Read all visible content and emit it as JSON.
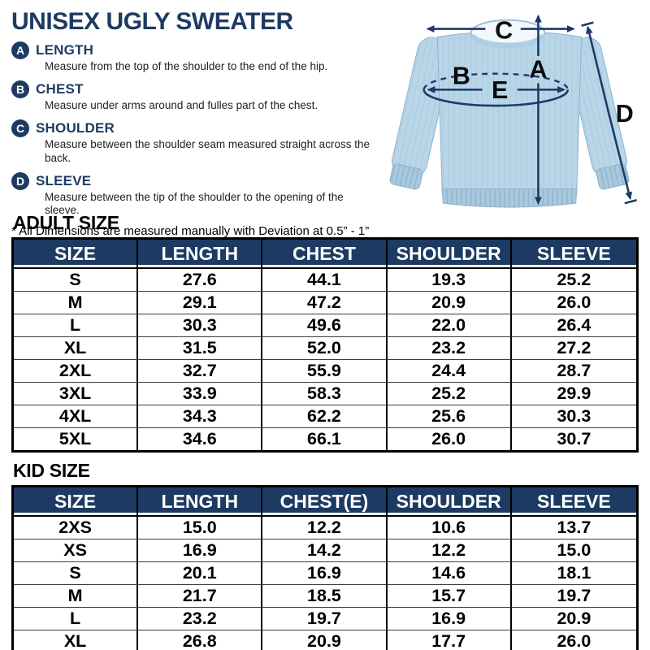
{
  "page": {
    "title": "UNISEX UGLY SWEATER",
    "note": "* All Dimensions are measured manually with Deviation at 0.5” - 1”"
  },
  "legend": {
    "items": [
      {
        "letter": "A",
        "label": "LENGTH",
        "description": "Measure from the top of the shoulder to the end of the hip."
      },
      {
        "letter": "B",
        "label": "CHEST",
        "description": "Measure under arms around and fulles part of the chest."
      },
      {
        "letter": "C",
        "label": "SHOULDER",
        "description": "Measure between the shoulder seam measured straight across the back."
      },
      {
        "letter": "D",
        "label": "SLEEVE",
        "description": "Measure between the tip of the shoulder to the opening of the sleeve."
      }
    ]
  },
  "diagram": {
    "labels": [
      "A",
      "B",
      "C",
      "D",
      "E"
    ]
  },
  "adult_table": {
    "heading": "ADULT SIZE",
    "columns": [
      "SIZE",
      "LENGTH",
      "CHEST",
      "SHOULDER",
      "SLEEVE"
    ],
    "rows": [
      [
        "S",
        "27.6",
        "44.1",
        "19.3",
        "25.2"
      ],
      [
        "M",
        "29.1",
        "47.2",
        "20.9",
        "26.0"
      ],
      [
        "L",
        "30.3",
        "49.6",
        "22.0",
        "26.4"
      ],
      [
        "XL",
        "31.5",
        "52.0",
        "23.2",
        "27.2"
      ],
      [
        "2XL",
        "32.7",
        "55.9",
        "24.4",
        "28.7"
      ],
      [
        "3XL",
        "33.9",
        "58.3",
        "25.2",
        "29.9"
      ],
      [
        "4XL",
        "34.3",
        "62.2",
        "25.6",
        "30.3"
      ],
      [
        "5XL",
        "34.6",
        "66.1",
        "26.0",
        "30.7"
      ]
    ]
  },
  "kid_table": {
    "heading": "KID SIZE",
    "columns": [
      "SIZE",
      "LENGTH",
      "CHEST(E)",
      "SHOULDER",
      "SLEEVE"
    ],
    "rows": [
      [
        "2XS",
        "15.0",
        "12.2",
        "10.6",
        "13.7"
      ],
      [
        "XS",
        "16.9",
        "14.2",
        "12.2",
        "15.0"
      ],
      [
        "S",
        "20.1",
        "16.9",
        "14.6",
        "18.1"
      ],
      [
        "M",
        "21.7",
        "18.5",
        "15.7",
        "19.7"
      ],
      [
        "L",
        "23.2",
        "19.7",
        "16.9",
        "20.9"
      ],
      [
        "XL",
        "26.8",
        "20.9",
        "17.7",
        "26.0"
      ]
    ]
  },
  "colors": {
    "navy": "#1d3b62",
    "arrow_navy": "#1b3a66",
    "sweater_blue": "#b9d6e9",
    "sweater_rib": "#a9c9de",
    "row_line": "#3d3d3d"
  }
}
